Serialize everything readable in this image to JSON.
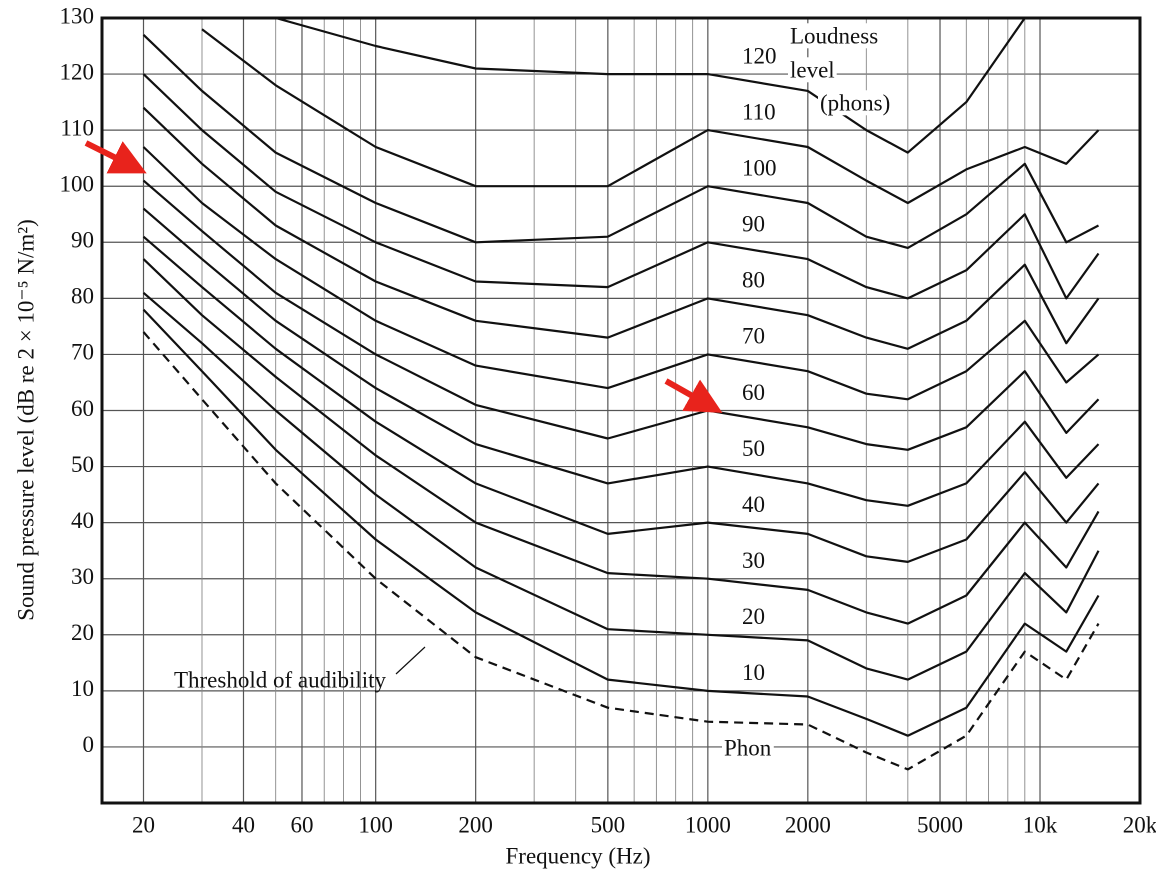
{
  "chart_data": {
    "type": "line",
    "xlabel": "Frequency (Hz)",
    "ylabel": "Sound pressure level (dB re 2 × 10⁻⁵ N/m²)",
    "log_x": true,
    "grid": true,
    "xlim": [
      15,
      20000
    ],
    "ylim": [
      -10,
      130
    ],
    "xticks": [
      20,
      40,
      60,
      100,
      200,
      500,
      1000,
      2000,
      5000,
      {
        "value": 10000,
        "label": "10k"
      },
      {
        "value": 20000,
        "label": "20k"
      }
    ],
    "xminor": [
      30,
      50,
      70,
      80,
      90,
      300,
      400,
      600,
      700,
      800,
      900,
      3000,
      4000,
      6000,
      7000,
      8000,
      9000
    ],
    "yticks": [
      0,
      10,
      20,
      30,
      40,
      50,
      60,
      70,
      80,
      90,
      100,
      110,
      120,
      130
    ],
    "x": [
      20,
      30,
      50,
      100,
      200,
      500,
      1000,
      2000,
      3000,
      4000,
      6000,
      9000,
      12000,
      15000
    ],
    "series": [
      {
        "name": "Threshold of audibility",
        "color": "#111111",
        "dashed": true,
        "values": [
          74,
          62,
          47,
          30,
          16,
          7,
          4.5,
          4,
          -1,
          -4,
          2,
          17,
          12,
          22
        ]
      },
      {
        "name": "10",
        "color": "#111111",
        "values": [
          78,
          67,
          53,
          37,
          24,
          12,
          10,
          9,
          5,
          2,
          7,
          22,
          17,
          27
        ]
      },
      {
        "name": "20",
        "color": "#111111",
        "values": [
          81,
          72,
          60,
          45,
          32,
          21,
          20,
          19,
          14,
          12,
          17,
          31,
          24,
          35
        ]
      },
      {
        "name": "30",
        "color": "#111111",
        "values": [
          87,
          77,
          66,
          52,
          40,
          31,
          30,
          28,
          24,
          22,
          27,
          40,
          32,
          42
        ]
      },
      {
        "name": "40",
        "color": "#111111",
        "values": [
          91,
          82,
          71,
          58,
          47,
          38,
          40,
          38,
          34,
          33,
          37,
          49,
          40,
          47
        ]
      },
      {
        "name": "50",
        "color": "#111111",
        "values": [
          96,
          87,
          76,
          64,
          54,
          47,
          50,
          47,
          44,
          43,
          47,
          58,
          48,
          54
        ]
      },
      {
        "name": "60",
        "color": "#111111",
        "values": [
          101,
          92,
          81,
          70,
          61,
          55,
          60,
          57,
          54,
          53,
          57,
          67,
          56,
          62
        ]
      },
      {
        "name": "70",
        "color": "#111111",
        "values": [
          107,
          97,
          87,
          76,
          68,
          64,
          70,
          67,
          63,
          62,
          67,
          76,
          65,
          70
        ]
      },
      {
        "name": "80",
        "color": "#111111",
        "values": [
          114,
          104,
          93,
          83,
          76,
          73,
          80,
          77,
          73,
          71,
          76,
          86,
          72,
          80
        ]
      },
      {
        "name": "90",
        "color": "#111111",
        "values": [
          120,
          110,
          99,
          90,
          83,
          82,
          90,
          87,
          82,
          80,
          85,
          95,
          80,
          88
        ]
      },
      {
        "name": "100",
        "color": "#111111",
        "values": [
          127,
          117,
          106,
          97,
          90,
          91,
          100,
          97,
          91,
          89,
          95,
          104,
          90,
          93
        ]
      },
      {
        "name": "110",
        "color": "#111111",
        "values": [
          null,
          128,
          118,
          107,
          100,
          100,
          110,
          107,
          101,
          97,
          103,
          107,
          104,
          110
        ]
      },
      {
        "name": "120",
        "color": "#111111",
        "values": [
          null,
          null,
          130,
          125,
          121,
          120,
          120,
          117,
          110,
          106,
          115,
          130,
          null,
          null
        ]
      }
    ],
    "legend_title": [
      "Loudness",
      "level",
      "(phons)"
    ],
    "annotations": [
      "Phon"
    ]
  }
}
